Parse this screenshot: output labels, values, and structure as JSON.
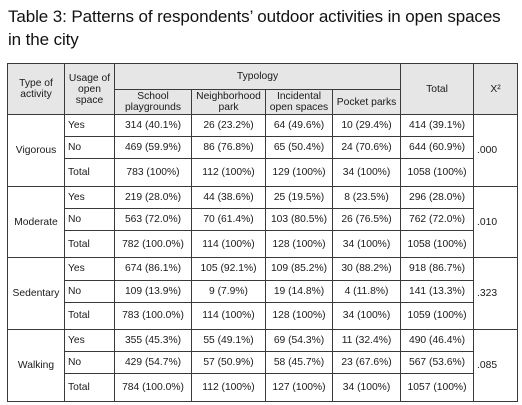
{
  "title": "Table 3: Patterns of respondents’ outdoor activities in open spaces in the city",
  "headers": {
    "type": "Type of activity",
    "usage": "Usage of open space",
    "typology": "Typology",
    "sub": [
      "School playgrounds",
      "Neighborhood park",
      "Incidental open spaces",
      "Pocket parks"
    ],
    "total": "Total",
    "chi": "X²"
  },
  "groups": [
    {
      "activity": "Vigorous",
      "chi": ".000",
      "rows": [
        {
          "usage": "Yes",
          "cells": [
            "314 (40.1%)",
            "26 (23.2%)",
            "64 (49.6%)",
            "10 (29.4%)",
            "414 (39.1%)"
          ]
        },
        {
          "usage": "No",
          "cells": [
            "469 (59.9%)",
            "86 (76.8%)",
            "65 (50.4%)",
            "24 (70.6%)",
            "644 (60.9%)"
          ]
        },
        {
          "usage": "Total",
          "cells": [
            "783 (100%)",
            "112 (100%)",
            "129 (100%)",
            "34 (100%)",
            "1058 (100%)"
          ]
        }
      ]
    },
    {
      "activity": "Moderate",
      "chi": ".010",
      "rows": [
        {
          "usage": "Yes",
          "cells": [
            "219 (28.0%)",
            "44 (38.6%)",
            "25 (19.5%)",
            "8 (23.5%)",
            "296 (28.0%)"
          ]
        },
        {
          "usage": "No",
          "cells": [
            "563 (72.0%)",
            "70 (61.4%)",
            "103 (80.5%)",
            "26 (76.5%)",
            "762 (72.0%)"
          ]
        },
        {
          "usage": "Total",
          "cells": [
            "782 (100.0%)",
            "114 (100%)",
            "128 (100%)",
            "34 (100%)",
            "1058 (100%)"
          ]
        }
      ]
    },
    {
      "activity": "Sedentary",
      "chi": ".323",
      "rows": [
        {
          "usage": "Yes",
          "cells": [
            "674 (86.1%)",
            "105 (92.1%)",
            "109 (85.2%)",
            "30 (88.2%)",
            "918 (86.7%)"
          ]
        },
        {
          "usage": "No",
          "cells": [
            "109 (13.9%)",
            "9 (7.9%)",
            "19 (14.8%)",
            "4 (11.8%)",
            "141 (13.3%)"
          ]
        },
        {
          "usage": "Total",
          "cells": [
            "783 (100.0%)",
            "114 (100%)",
            "128 (100%)",
            "34 (100%)",
            "1059 (100%)"
          ]
        }
      ]
    },
    {
      "activity": "Walking",
      "chi": ".085",
      "rows": [
        {
          "usage": "Yes",
          "cells": [
            "355 (45.3%)",
            "55 (49.1%)",
            "69 (54.3%)",
            "11 (32.4%)",
            "490 (46.4%)"
          ]
        },
        {
          "usage": "No",
          "cells": [
            "429 (54.7%)",
            "57 (50.9%)",
            "58 (45.7%)",
            "23 (67.6%)",
            "567 (53.6%)"
          ]
        },
        {
          "usage": "Total",
          "cells": [
            "784 (100.0%)",
            "112 (100%)",
            "127 (100%)",
            "34 (100%)",
            "1057 (100%)"
          ]
        }
      ]
    }
  ]
}
